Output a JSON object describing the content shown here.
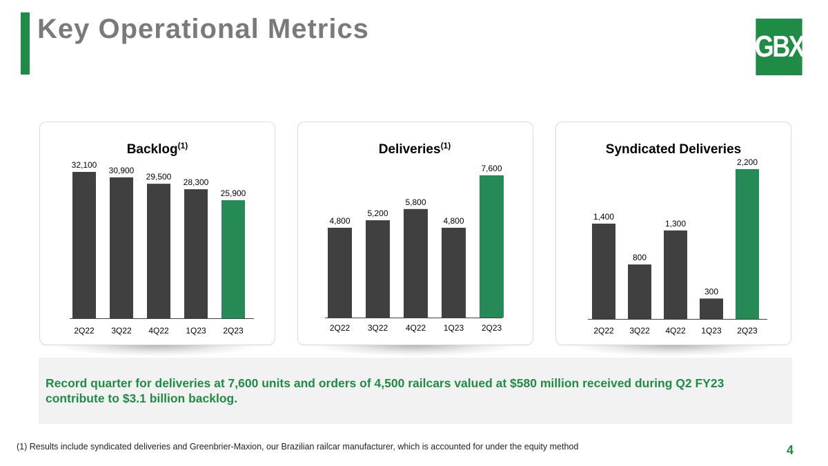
{
  "page": {
    "title": "Key Operational Metrics",
    "logo_text": "GBX",
    "callout": "Record quarter for deliveries at 7,600 units and orders of 4,500 railcars valued at $580 million received during Q2 FY23 contribute to $3.1 billion backlog.",
    "footnote": "(1) Results include syndicated deliveries and Greenbrier-Maxion, our Brazilian railcar manufacturer, which is accounted for under the equity method",
    "page_number": "4"
  },
  "colors": {
    "bar": "#404040",
    "highlight": "#268a56",
    "brand": "#1f8c45",
    "title": "#7a7a7a"
  },
  "chart_data": [
    {
      "type": "bar",
      "title": "Backlog",
      "title_sup": "(1)",
      "categories": [
        "2Q22",
        "3Q22",
        "4Q22",
        "1Q23",
        "2Q23"
      ],
      "values": [
        32100,
        30900,
        29500,
        28300,
        25900
      ],
      "value_labels": [
        "32,100",
        "30,900",
        "29,500",
        "28,300",
        "25,900"
      ],
      "highlight_index": 4,
      "ylim": [
        0,
        32100
      ],
      "grid": false,
      "legend": "none"
    },
    {
      "type": "bar",
      "title": "Deliveries",
      "title_sup": "(1)",
      "categories": [
        "2Q22",
        "3Q22",
        "4Q22",
        "1Q23",
        "2Q23"
      ],
      "values": [
        4800,
        5200,
        5800,
        4800,
        7600
      ],
      "value_labels": [
        "4,800",
        "5,200",
        "5,800",
        "4,800",
        "7,600"
      ],
      "highlight_index": 4,
      "ylim": [
        0,
        7600
      ],
      "grid": false,
      "legend": "none"
    },
    {
      "type": "bar",
      "title": "Syndicated Deliveries",
      "title_sup": "",
      "categories": [
        "2Q22",
        "3Q22",
        "4Q22",
        "1Q23",
        "2Q23"
      ],
      "values": [
        1400,
        800,
        1300,
        300,
        2200
      ],
      "value_labels": [
        "1,400",
        "800",
        "1,300",
        "300",
        "2,200"
      ],
      "highlight_index": 4,
      "ylim": [
        0,
        2200
      ],
      "grid": false,
      "legend": "none"
    }
  ]
}
